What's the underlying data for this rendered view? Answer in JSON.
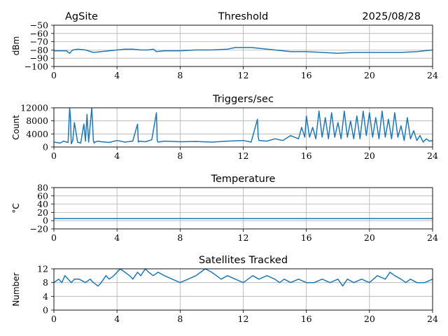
{
  "header": {
    "site": "AgSite",
    "date": "2025/08/28"
  },
  "colors": {
    "series": "#1f77b4",
    "grid": "#b0b0b0"
  },
  "chart_data": [
    {
      "id": "threshold",
      "type": "line",
      "title": "Threshold",
      "ylabel": "dBm",
      "ylim": [
        -100,
        -50
      ],
      "yticks": [
        -100,
        -90,
        -80,
        -70,
        -60,
        -50
      ],
      "ytick_labels": [
        "−100",
        "−90",
        "−80",
        "−70",
        "−60",
        "−50"
      ],
      "xlim": [
        0,
        24
      ],
      "xticks": [
        0,
        4,
        8,
        12,
        16,
        20,
        24
      ],
      "grid": true,
      "x": [
        0,
        0.5,
        0.8,
        1.0,
        1.2,
        1.5,
        2.0,
        2.5,
        3.0,
        3.5,
        4.0,
        4.5,
        5.0,
        5.5,
        6.0,
        6.3,
        6.5,
        7.0,
        8.0,
        9.0,
        10.0,
        11.0,
        11.5,
        12.0,
        12.5,
        13.0,
        14.0,
        15.0,
        16.0,
        17.0,
        18.0,
        19.0,
        20.0,
        21.0,
        22.0,
        23.0,
        24.0
      ],
      "values": [
        -81,
        -81,
        -81,
        -84,
        -80,
        -79,
        -80,
        -83,
        -82,
        -81,
        -80,
        -79,
        -79,
        -80,
        -80,
        -79,
        -82,
        -81,
        -81,
        -80,
        -80,
        -79,
        -77,
        -77,
        -77,
        -78,
        -80,
        -82,
        -82,
        -83,
        -84,
        -83,
        -83,
        -83,
        -83,
        -82,
        -80
      ]
    },
    {
      "id": "triggers",
      "type": "line",
      "title": "Triggers/sec",
      "ylabel": "Count",
      "ylim": [
        0,
        12000
      ],
      "yticks": [
        0,
        4000,
        8000,
        12000
      ],
      "ytick_labels": [
        "0",
        "4000",
        "8000",
        "12000"
      ],
      "xlim": [
        0,
        24
      ],
      "xticks": [
        0,
        4,
        8,
        12,
        16,
        20,
        24
      ],
      "grid": true,
      "x": [
        0,
        0.4,
        0.6,
        0.9,
        1.0,
        1.05,
        1.1,
        1.2,
        1.3,
        1.5,
        1.7,
        1.9,
        2.0,
        2.1,
        2.2,
        2.4,
        2.5,
        2.55,
        2.6,
        2.8,
        3.0,
        3.5,
        4.0,
        4.5,
        5.0,
        5.3,
        5.35,
        5.4,
        5.8,
        6.2,
        6.5,
        6.55,
        6.6,
        7.0,
        8.0,
        9.0,
        10.0,
        11.0,
        12.0,
        12.5,
        12.9,
        12.95,
        13.0,
        13.5,
        14.0,
        14.5,
        15.0,
        15.5,
        15.7,
        15.9,
        16.0,
        16.2,
        16.4,
        16.6,
        16.8,
        17.0,
        17.2,
        17.4,
        17.6,
        17.8,
        18.0,
        18.2,
        18.4,
        18.6,
        18.8,
        19.0,
        19.2,
        19.4,
        19.6,
        19.8,
        20.0,
        20.2,
        20.4,
        20.6,
        20.8,
        21.0,
        21.2,
        21.4,
        21.6,
        21.8,
        22.0,
        22.2,
        22.4,
        22.6,
        22.8,
        23.0,
        23.2,
        23.4,
        23.6,
        23.8,
        24.0
      ],
      "values": [
        1500,
        1200,
        1800,
        1400,
        12000,
        9000,
        1000,
        2000,
        7500,
        1500,
        1200,
        7000,
        1800,
        10000,
        1500,
        12000,
        2000,
        1200,
        1500,
        1800,
        1600,
        1400,
        2000,
        1500,
        1800,
        7000,
        1500,
        1800,
        1600,
        2200,
        10500,
        2000,
        1500,
        1800,
        1600,
        1700,
        1500,
        1800,
        2000,
        1500,
        8500,
        3000,
        2000,
        1800,
        2500,
        2000,
        3500,
        2500,
        6000,
        3000,
        9500,
        3000,
        6000,
        2500,
        11000,
        3000,
        9000,
        2500,
        10500,
        3000,
        7500,
        2500,
        11000,
        3000,
        8000,
        2500,
        9500,
        2500,
        11000,
        3500,
        10500,
        3000,
        9000,
        2500,
        11000,
        3000,
        8500,
        2500,
        10500,
        3000,
        6500,
        2000,
        9000,
        2500,
        5000,
        2000,
        3500,
        1500,
        2500,
        1800,
        2000
      ]
    },
    {
      "id": "temperature",
      "type": "line",
      "title": "Temperature",
      "ylabel": "°C",
      "ylim": [
        -20,
        80
      ],
      "yticks": [
        -20,
        0,
        20,
        40,
        60,
        80
      ],
      "ytick_labels": [
        "−20",
        "0",
        "20",
        "40",
        "60",
        "80"
      ],
      "xlim": [
        0,
        24
      ],
      "xticks": [
        0,
        4,
        8,
        12,
        16,
        20,
        24
      ],
      "grid": true,
      "x": [
        0,
        24
      ],
      "values": [
        5,
        5
      ]
    },
    {
      "id": "satellites",
      "type": "line",
      "title": "Satellites Tracked",
      "ylabel": "Number",
      "ylim": [
        0,
        12
      ],
      "yticks": [
        0,
        4,
        8,
        12
      ],
      "ytick_labels": [
        "0",
        "4",
        "8",
        "12"
      ],
      "xlim": [
        0,
        24
      ],
      "xticks": [
        0,
        4,
        8,
        12,
        16,
        20,
        24
      ],
      "grid": true,
      "x": [
        0,
        0.3,
        0.5,
        0.7,
        0.9,
        1.1,
        1.3,
        1.6,
        2.0,
        2.3,
        2.5,
        2.8,
        3.0,
        3.3,
        3.5,
        3.8,
        4.0,
        4.2,
        4.5,
        4.8,
        5.0,
        5.3,
        5.5,
        5.8,
        6.0,
        6.3,
        6.6,
        7.0,
        7.5,
        8.0,
        8.5,
        9.0,
        9.3,
        9.6,
        10.0,
        10.3,
        10.6,
        11.0,
        11.5,
        12.0,
        12.3,
        12.6,
        13.0,
        13.5,
        14.0,
        14.3,
        14.6,
        15.0,
        15.5,
        16.0,
        16.5,
        17.0,
        17.5,
        18.0,
        18.3,
        18.6,
        19.0,
        19.5,
        20.0,
        20.5,
        21.0,
        21.3,
        21.6,
        22.0,
        22.3,
        22.6,
        23.0,
        23.5,
        24.0
      ],
      "values": [
        8,
        9,
        8,
        10,
        9,
        8,
        9,
        9,
        8,
        9,
        8,
        7,
        8,
        10,
        9,
        10,
        11,
        12,
        11,
        10,
        9,
        11,
        10,
        12,
        11,
        10,
        11,
        10,
        9,
        8,
        9,
        10,
        11,
        12,
        11,
        10,
        9,
        10,
        9,
        8,
        9,
        10,
        9,
        10,
        9,
        8,
        9,
        8,
        9,
        8,
        8,
        9,
        8,
        9,
        7,
        9,
        8,
        9,
        8,
        10,
        9,
        11,
        10,
        9,
        8,
        9,
        8,
        8,
        9
      ]
    }
  ]
}
